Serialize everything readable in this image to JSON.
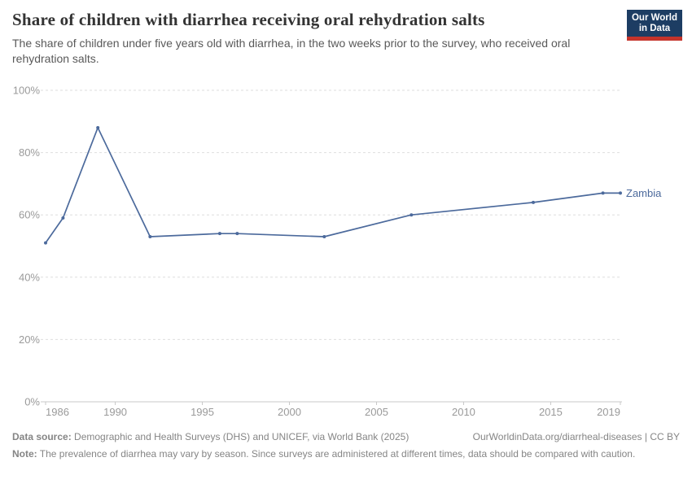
{
  "header": {
    "title": "Share of children with diarrhea receiving oral rehydration salts",
    "subtitle": "The share of children under five years old with diarrhea, in the two weeks prior to the survey, who received oral rehydration salts.",
    "logo": {
      "line1": "Our World",
      "line2": "in Data"
    }
  },
  "chart_data": {
    "type": "line",
    "title": "Share of children with diarrhea receiving oral rehydration salts",
    "xlabel": "",
    "ylabel": "",
    "xlim": [
      1986,
      2019
    ],
    "ylim": [
      0,
      100
    ],
    "x_ticks": [
      1986,
      1990,
      1995,
      2000,
      2005,
      2010,
      2015,
      2019
    ],
    "y_ticks": [
      0,
      20,
      40,
      60,
      80,
      100
    ],
    "y_tick_suffix": "%",
    "grid": "horizontal-dashed",
    "legend_position": "end-of-line-label",
    "series": [
      {
        "name": "Zambia",
        "color": "#4C6A9C",
        "x": [
          1986,
          1987,
          1989,
          1992,
          1996,
          1997,
          2002,
          2007,
          2014,
          2018,
          2019
        ],
        "values": [
          51,
          59,
          88,
          53,
          54,
          54,
          53,
          60,
          64,
          67,
          67
        ]
      }
    ]
  },
  "footer": {
    "datasource_label": "Data source:",
    "datasource_text": "Demographic and Health Surveys (DHS) and UNICEF, via World Bank (2025)",
    "link": "OurWorldinData.org/diarrheal-diseases | CC BY",
    "note_label": "Note:",
    "note_text": "The prevalence of diarrhea may vary by season. Since surveys are administered at different times, data should be compared with caution."
  },
  "colors": {
    "line": "#4C6A9C",
    "grid": "#dedede",
    "axis": "#c8c8c8",
    "tick_label": "#9a9a9a",
    "title": "#333333",
    "subtitle": "#595959",
    "footer_text": "#858585",
    "logo_bg": "#1d3d63",
    "logo_red": "#c5342b"
  }
}
